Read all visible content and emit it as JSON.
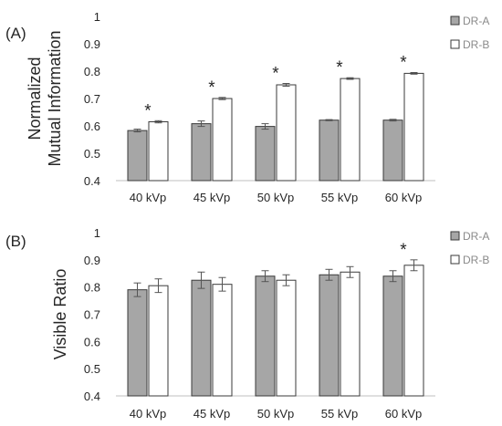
{
  "chart_data": [
    {
      "type": "bar",
      "panel_label": "(A)",
      "ylabel": [
        "Normalized",
        "Mutual Information"
      ],
      "ylim": [
        0.4,
        1.0
      ],
      "yticks": [
        "0.4",
        "0.5",
        "0.6",
        "0.7",
        "0.8",
        "0.9",
        "1"
      ],
      "categories": [
        "40 kVp",
        "45 kVp",
        "50 kVp",
        "55 kVp",
        "60 kVp"
      ],
      "grid": false,
      "legend_position": "right",
      "series": [
        {
          "name": "DR-A",
          "color": "#a6a6a6",
          "values": [
            0.583,
            0.608,
            0.598,
            0.621,
            0.621
          ],
          "errors": [
            0.005,
            0.01,
            0.01,
            0.002,
            0.003
          ]
        },
        {
          "name": "DR-B",
          "color": "#ffffff",
          "values": [
            0.615,
            0.7,
            0.75,
            0.773,
            0.792
          ],
          "errors": [
            0.004,
            0.004,
            0.005,
            0.003,
            0.003
          ]
        }
      ],
      "significance": [
        "*",
        "*",
        "*",
        "*",
        "*"
      ]
    },
    {
      "type": "bar",
      "panel_label": "(B)",
      "ylabel": [
        "Visible Ratio"
      ],
      "ylim": [
        0.4,
        1.0
      ],
      "yticks": [
        "0.4",
        "0.5",
        "0.6",
        "0.7",
        "0.8",
        "0.9",
        "1"
      ],
      "categories": [
        "40 kVp",
        "45 kVp",
        "50 kVp",
        "55 kVp",
        "60 kVp"
      ],
      "grid": false,
      "legend_position": "right",
      "series": [
        {
          "name": "DR-A",
          "color": "#a6a6a6",
          "values": [
            0.79,
            0.825,
            0.84,
            0.845,
            0.84
          ],
          "errors": [
            0.025,
            0.03,
            0.02,
            0.02,
            0.02
          ]
        },
        {
          "name": "DR-B",
          "color": "#ffffff",
          "values": [
            0.805,
            0.81,
            0.825,
            0.855,
            0.88
          ],
          "errors": [
            0.025,
            0.025,
            0.02,
            0.02,
            0.02
          ]
        }
      ],
      "significance": [
        "",
        "",
        "",
        "",
        "*"
      ]
    }
  ]
}
